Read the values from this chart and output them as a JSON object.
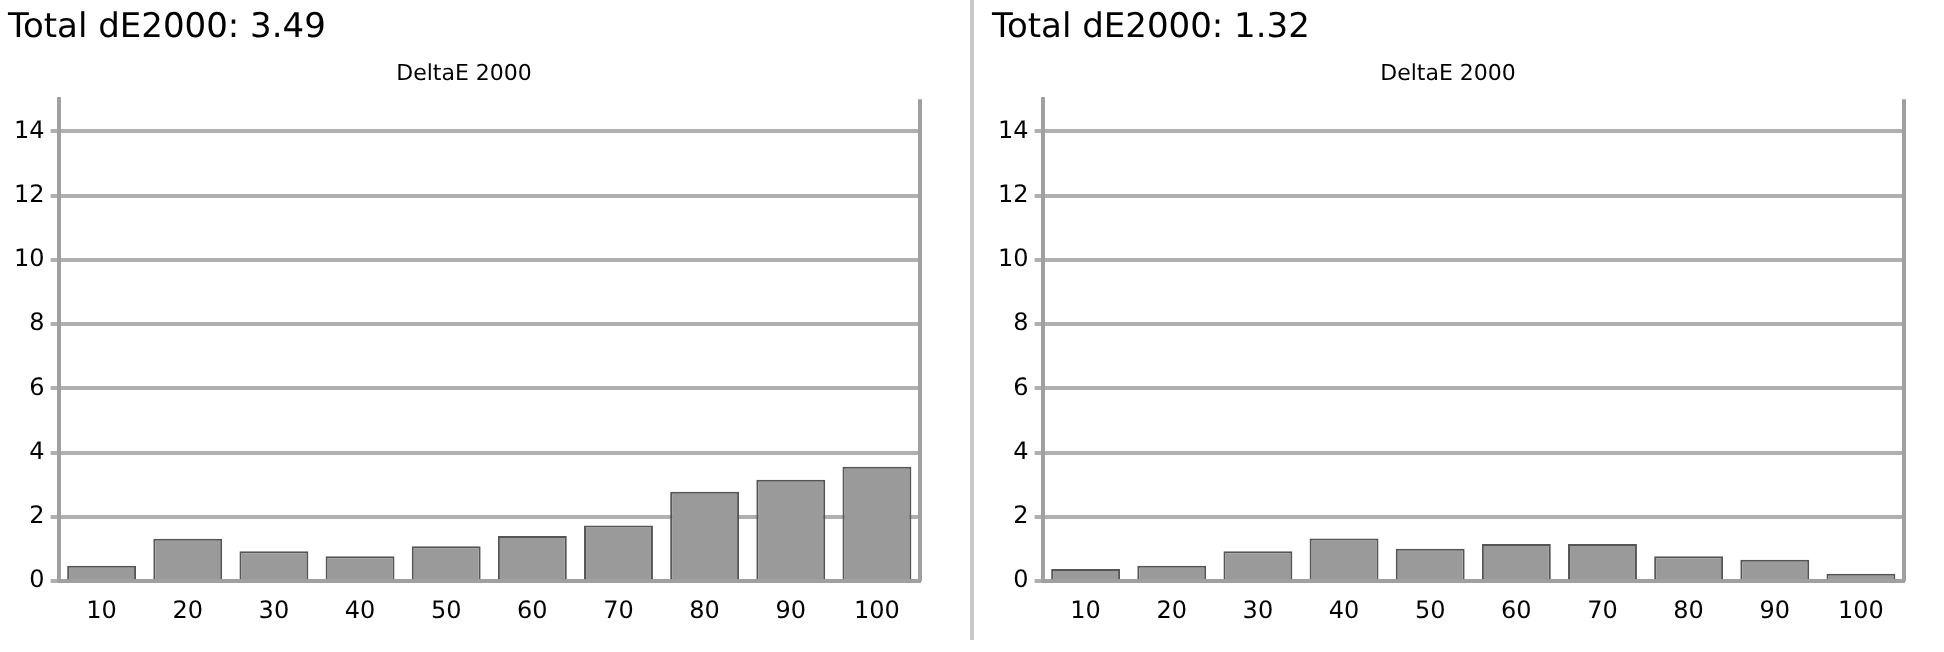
{
  "chart_data": [
    {
      "type": "bar",
      "title": "Total dE2000: 3.49",
      "subtitle": "DeltaE 2000",
      "categories": [
        "10",
        "20",
        "30",
        "40",
        "50",
        "60",
        "70",
        "80",
        "90",
        "100"
      ],
      "values": [
        0.48,
        1.32,
        0.93,
        0.78,
        1.09,
        1.41,
        1.73,
        2.78,
        3.16,
        3.56
      ],
      "color": "#9a9a9a",
      "ylim": [
        0,
        15
      ],
      "yticks": [
        0,
        2,
        4,
        6,
        8,
        10,
        12,
        14
      ],
      "grid": "y",
      "legend": false
    },
    {
      "type": "bar",
      "title": "Total dE2000: 1.32",
      "subtitle": "DeltaE 2000",
      "categories": [
        "10",
        "20",
        "30",
        "40",
        "50",
        "60",
        "70",
        "80",
        "90",
        "100"
      ],
      "values": [
        0.38,
        0.48,
        0.93,
        1.33,
        1.01,
        1.16,
        1.16,
        0.78,
        0.67,
        0.23
      ],
      "color": "#9a9a9a",
      "ylim": [
        0,
        15
      ],
      "yticks": [
        0,
        2,
        4,
        6,
        8,
        10,
        12,
        14
      ],
      "grid": "y",
      "legend": false
    }
  ]
}
